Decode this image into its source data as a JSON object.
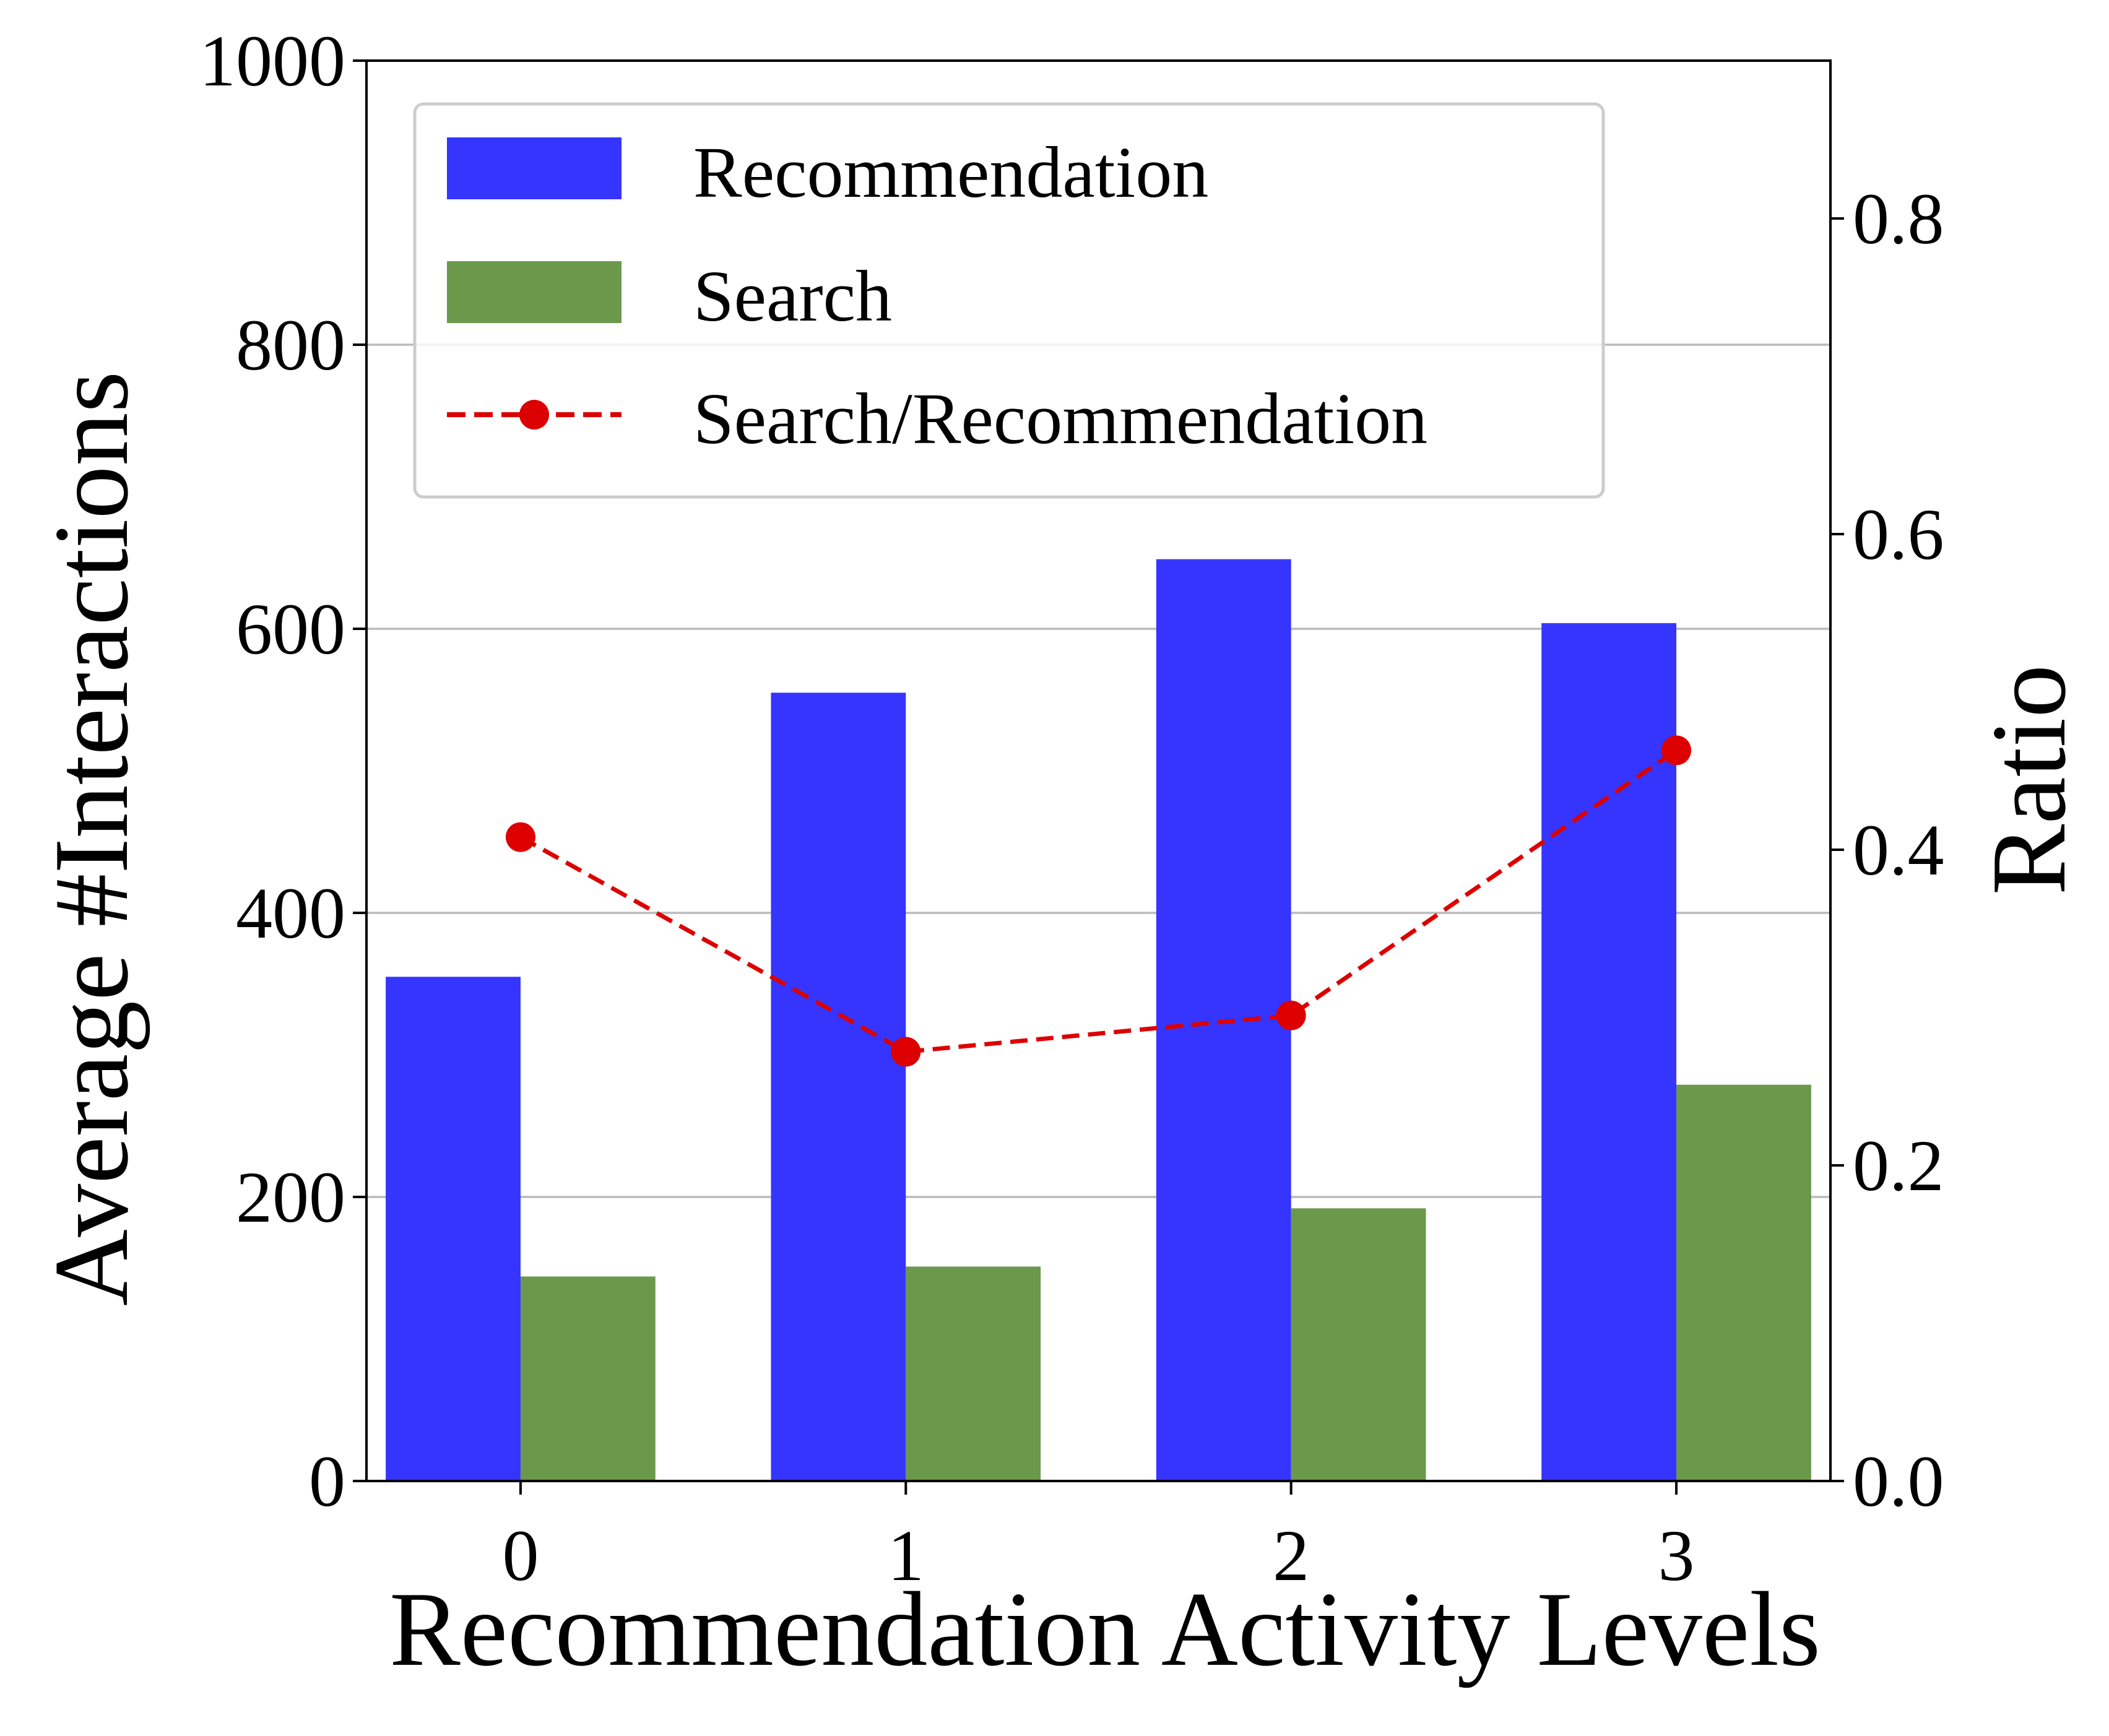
{
  "chart_data": {
    "type": "bar",
    "categories": [
      "0",
      "1",
      "2",
      "3"
    ],
    "series": [
      {
        "name": "Recommendation",
        "type": "bar",
        "axis": "left",
        "color": "#3535ff",
        "values": [
          355,
          555,
          649,
          604
        ]
      },
      {
        "name": "Search",
        "type": "bar",
        "axis": "left",
        "color": "#6a994c",
        "values": [
          144,
          151,
          192,
          279
        ]
      },
      {
        "name": "Search/Recommendation",
        "type": "line",
        "axis": "right",
        "color": "#dd0000",
        "style": "dashed",
        "marker": "circle",
        "values": [
          0.408,
          0.272,
          0.295,
          0.463
        ]
      }
    ],
    "xlabel": "Recommendation Activity Levels",
    "ylabel": "Average #Interactions",
    "ylabel_right": "Ratio",
    "ylim": [
      0,
      1000
    ],
    "ylim_right": [
      0,
      0.9
    ],
    "yticks": [
      "0",
      "200",
      "400",
      "600",
      "800",
      "1000"
    ],
    "yticks_right": [
      "0.0",
      "0.2",
      "0.4",
      "0.6",
      "0.8"
    ],
    "grid": "horizontal",
    "legend_position": "top-left"
  }
}
